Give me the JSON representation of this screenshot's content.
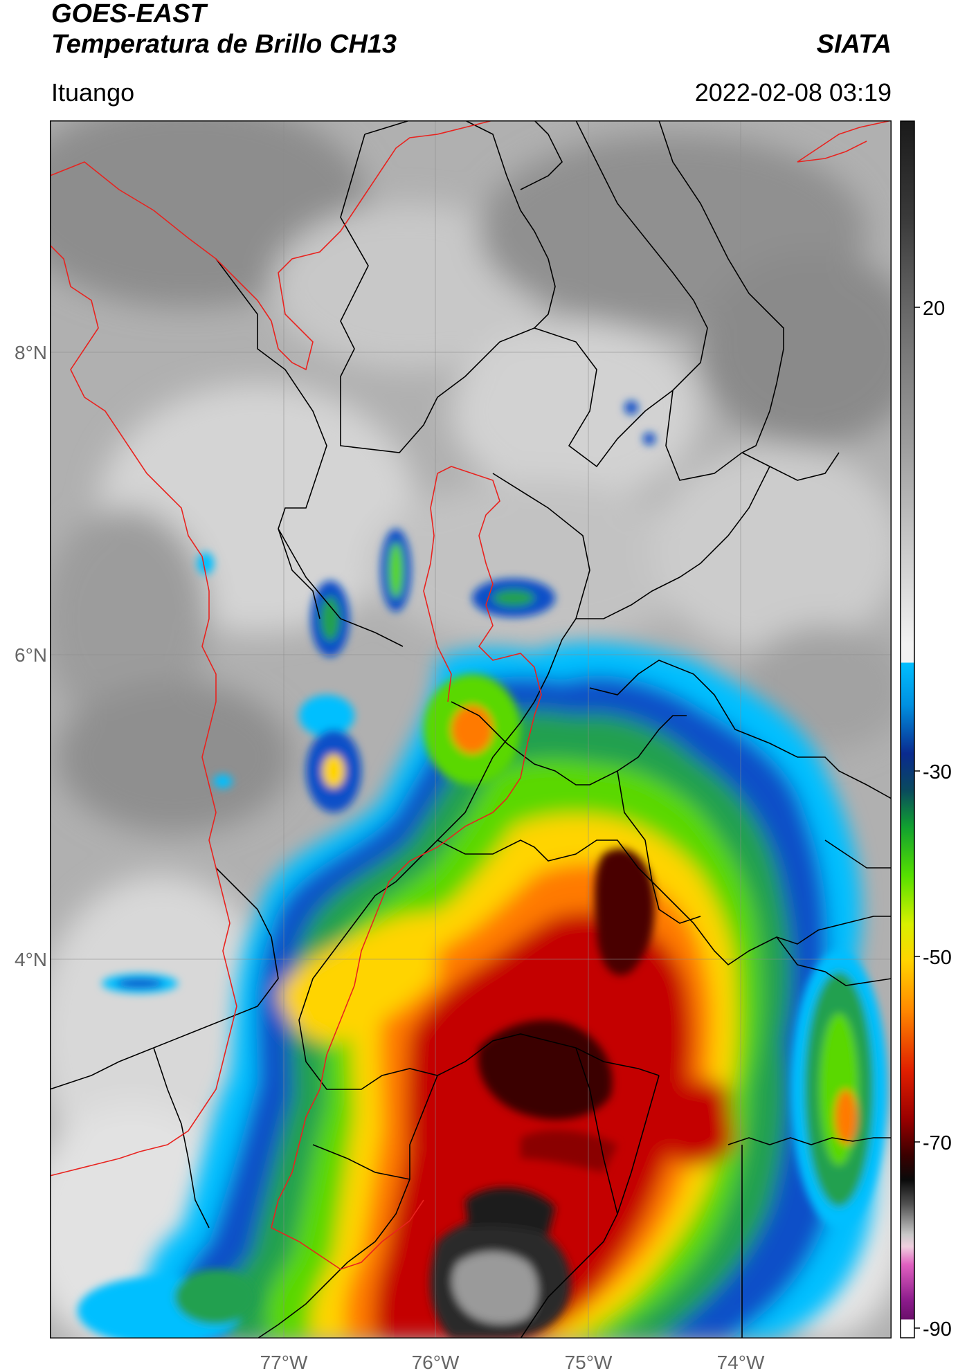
{
  "header": {
    "title_line1": "GOES-EAST",
    "title_line2": "Temperatura de Brillo CH13",
    "credit": "SIATA",
    "region": "Ituango",
    "datetime": "2022-02-08 03:19"
  },
  "map": {
    "lat_labels": [
      "8°N",
      "6°N",
      "4°N"
    ],
    "lon_labels": [
      "77°W",
      "76°W",
      "75°W",
      "74°W"
    ],
    "border_color": "#e8231f",
    "boundary_color": "#000000"
  },
  "colorbar": {
    "tick_labels": [
      "20",
      "-30",
      "-50",
      "-70",
      "-90"
    ],
    "palette": [
      {
        "value": "-90",
        "color": "#ffffff"
      },
      {
        "value": "-85",
        "color": "#8a1a8a"
      },
      {
        "value": "-80",
        "color": "#e060c0"
      },
      {
        "value": "-75",
        "color": "#c8c8c8"
      },
      {
        "value": "-70",
        "color": "#101010"
      },
      {
        "value": "-62",
        "color": "#c40000"
      },
      {
        "value": "-55",
        "color": "#ff7a00"
      },
      {
        "value": "-50",
        "color": "#ffd400"
      },
      {
        "value": "-40",
        "color": "#55e000"
      },
      {
        "value": "-32",
        "color": "#0a3a9e"
      },
      {
        "value": "-22",
        "color": "#00bfff"
      },
      {
        "value": "-20",
        "color": "#f2f2f2"
      },
      {
        "value": "20",
        "color": "#7a7a7a"
      },
      {
        "value": "30",
        "color": "#202020"
      }
    ]
  }
}
